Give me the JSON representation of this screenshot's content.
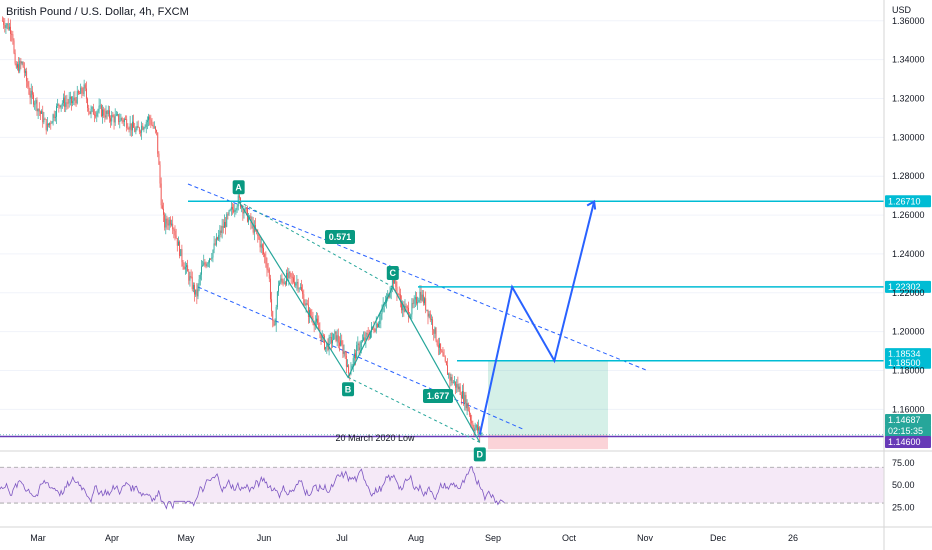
{
  "chart_data": {
    "type": "candlestick",
    "title": "British Pound / U.S. Dollar, 4h, FXCM",
    "currency": "USD",
    "y_range": [
      1.1365,
      1.3707
    ],
    "y_ticks": [
      "1.36000",
      "1.34000",
      "1.32000",
      "1.30000",
      "1.28000",
      "1.26000",
      "1.24000",
      "1.22000",
      "1.20000",
      "1.18000",
      "1.16000"
    ],
    "x_ticks": [
      "Mar",
      "Apr",
      "May",
      "Jun",
      "Jul",
      "Aug",
      "Sep",
      "Oct",
      "Nov",
      "Dec",
      "26"
    ],
    "price_path": [
      [
        "2022-02-25",
        1.36
      ],
      [
        "2022-03-01",
        1.355
      ],
      [
        "2022-03-02",
        1.335
      ],
      [
        "2022-03-05",
        1.338
      ],
      [
        "2022-03-08",
        1.322
      ],
      [
        "2022-03-10",
        1.319
      ],
      [
        "2022-03-12",
        1.313
      ],
      [
        "2022-03-15",
        1.305
      ],
      [
        "2022-03-20",
        1.318
      ],
      [
        "2022-03-25",
        1.318
      ],
      [
        "2022-03-30",
        1.325
      ],
      [
        "2022-04-01",
        1.313
      ],
      [
        "2022-04-05",
        1.314
      ],
      [
        "2022-04-10",
        1.31
      ],
      [
        "2022-04-15",
        1.309
      ],
      [
        "2022-04-20",
        1.303
      ],
      [
        "2022-04-25",
        1.31
      ],
      [
        "2022-04-28",
        1.301
      ],
      [
        "2022-04-30",
        1.265
      ],
      [
        "2022-05-01",
        1.255
      ],
      [
        "2022-05-04",
        1.258
      ],
      [
        "2022-05-08",
        1.238
      ],
      [
        "2022-05-12",
        1.225
      ],
      [
        "2022-05-14",
        1.218
      ],
      [
        "2022-05-16",
        1.232
      ],
      [
        "2022-05-20",
        1.24
      ],
      [
        "2022-05-24",
        1.252
      ],
      [
        "2022-05-28",
        1.262
      ],
      [
        "2022-05-31",
        1.268
      ],
      [
        "2022-06-04",
        1.258
      ],
      [
        "2022-06-08",
        1.248
      ],
      [
        "2022-06-12",
        1.232
      ],
      [
        "2022-06-14",
        1.198
      ],
      [
        "2022-06-16",
        1.225
      ],
      [
        "2022-06-20",
        1.228
      ],
      [
        "2022-06-24",
        1.225
      ],
      [
        "2022-06-28",
        1.21
      ],
      [
        "2022-07-01",
        1.205
      ],
      [
        "2022-07-05",
        1.192
      ],
      [
        "2022-07-09",
        1.198
      ],
      [
        "2022-07-13",
        1.188
      ],
      [
        "2022-07-14",
        1.178
      ],
      [
        "2022-07-18",
        1.192
      ],
      [
        "2022-07-22",
        1.198
      ],
      [
        "2022-07-26",
        1.205
      ],
      [
        "2022-07-30",
        1.218
      ],
      [
        "2022-08-01",
        1.228
      ],
      [
        "2022-08-05",
        1.212
      ],
      [
        "2022-08-08",
        1.21
      ],
      [
        "2022-08-12",
        1.22
      ],
      [
        "2022-08-16",
        1.208
      ],
      [
        "2022-08-20",
        1.19
      ],
      [
        "2022-08-24",
        1.176
      ],
      [
        "2022-08-28",
        1.17
      ],
      [
        "2022-08-31",
        1.162
      ],
      [
        "2022-09-02",
        1.152
      ],
      [
        "2022-09-06",
        1.147
      ]
    ],
    "last_price": "1.14687",
    "countdown": "02:15:35",
    "levels": [
      {
        "label": "1.26710",
        "price": 1.2671
      },
      {
        "label": "1.22302",
        "price": 1.22302
      },
      {
        "label": "1.18500",
        "price": 1.185
      },
      {
        "label": "1.18534",
        "price": 1.18534
      },
      {
        "label": "1.14600",
        "price": 1.146
      }
    ],
    "points": [
      {
        "label": "A",
        "date": "2022-05-31",
        "price": 1.2671
      },
      {
        "label": "B",
        "date": "2022-07-14",
        "price": 1.1765
      },
      {
        "label": "C",
        "date": "2022-08-01",
        "price": 1.223
      },
      {
        "label": "D",
        "date": "2022-09-05",
        "price": 1.143
      }
    ],
    "ratios": [
      "0.571",
      "1.677"
    ],
    "annotation": "20 March 2020 Low",
    "projection_path": [
      [
        "2022-09-05",
        1.147
      ],
      [
        "2022-09-18",
        1.223
      ],
      [
        "2022-10-05",
        1.185
      ],
      [
        "2022-10-21",
        1.267
      ]
    ],
    "rsi": {
      "y_range": [
        10,
        87
      ],
      "ticks": [
        "75.00",
        "50.00",
        "25.00"
      ],
      "bands": [
        30,
        70
      ]
    }
  }
}
